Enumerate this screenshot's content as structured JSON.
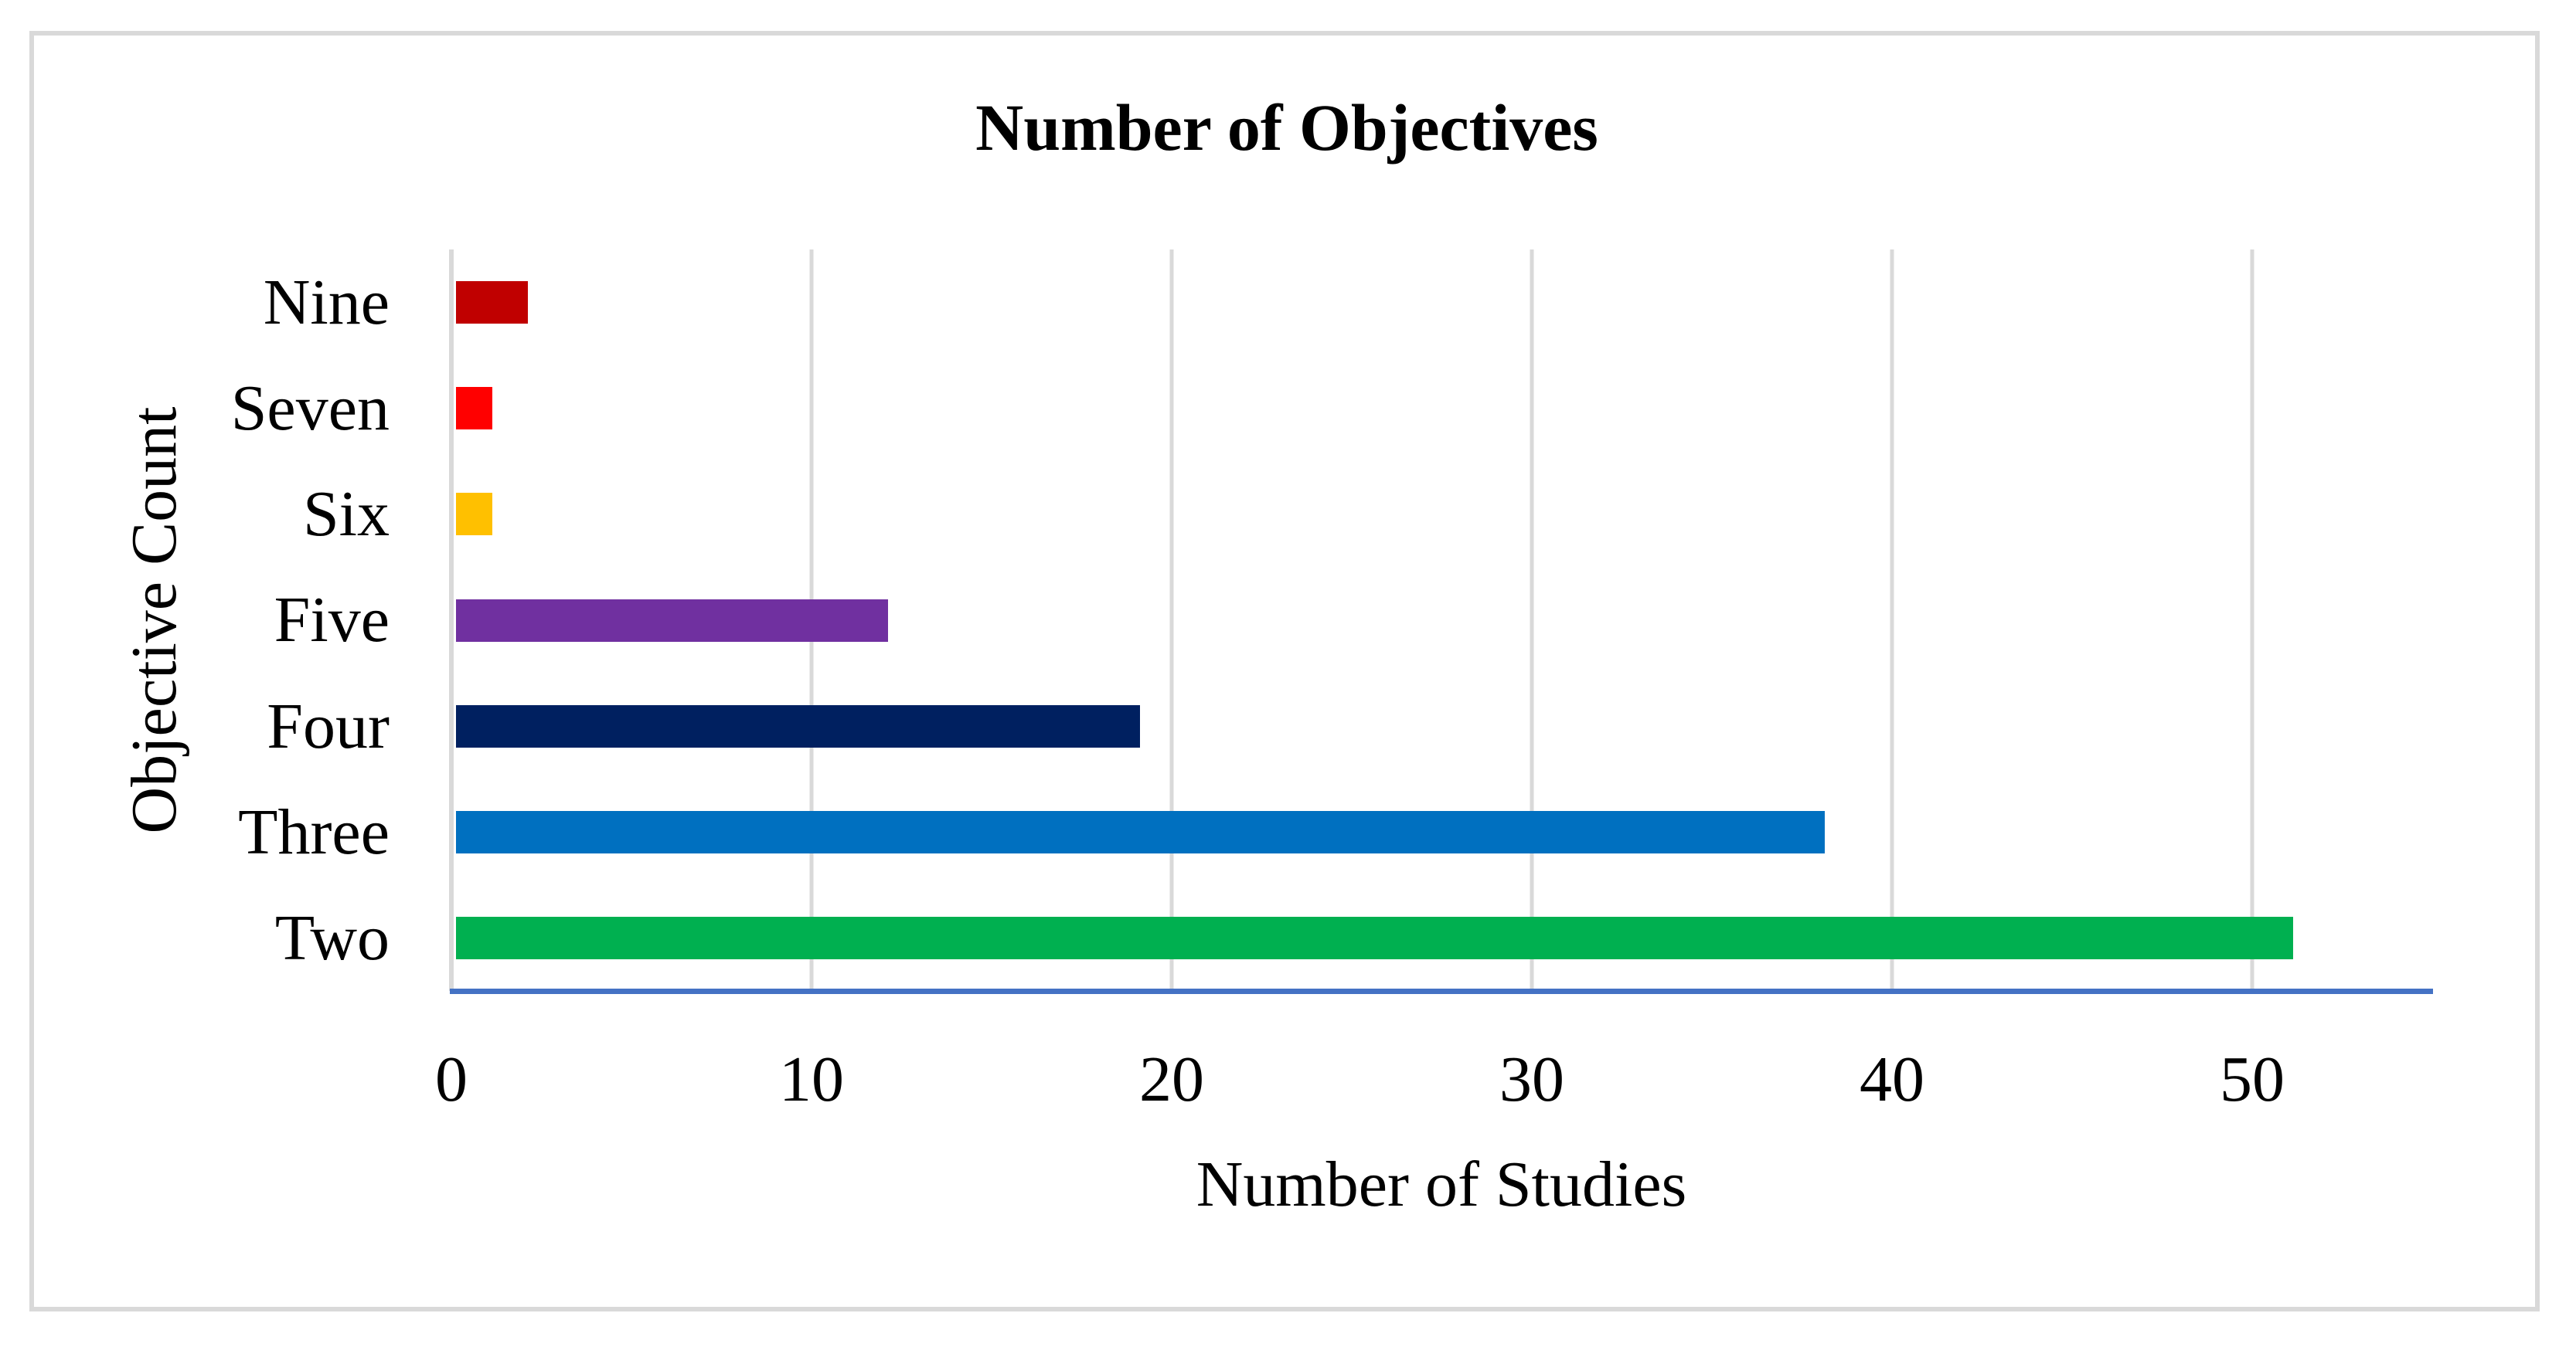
{
  "chart_data": {
    "type": "bar",
    "orientation": "horizontal",
    "title": "Number of Objectives",
    "xlabel": "Number of Studies",
    "ylabel": "Objective Count",
    "categories": [
      "Nine",
      "Seven",
      "Six",
      "Five",
      "Four",
      "Three",
      "Two"
    ],
    "values": [
      2,
      1,
      1,
      12,
      19,
      38,
      51
    ],
    "bar_colors": [
      "#C00000",
      "#FF0000",
      "#FFC000",
      "#7030A0",
      "#002060",
      "#0070C0",
      "#00B050"
    ],
    "xlim": [
      0,
      55
    ],
    "xticks": [
      0,
      10,
      20,
      30,
      40,
      50
    ],
    "xtick_labels": [
      "0",
      "10",
      "20",
      "30",
      "40",
      "50"
    ],
    "grid": "vertical",
    "legend": "none",
    "colors": {
      "gridline": "#D9D9D9",
      "axis_vertical_line": "#D9D9D9",
      "axis_baseline": "#4472C4",
      "frame_border": "#D9D9D9",
      "text": "#000000",
      "background": "#FFFFFF"
    }
  }
}
